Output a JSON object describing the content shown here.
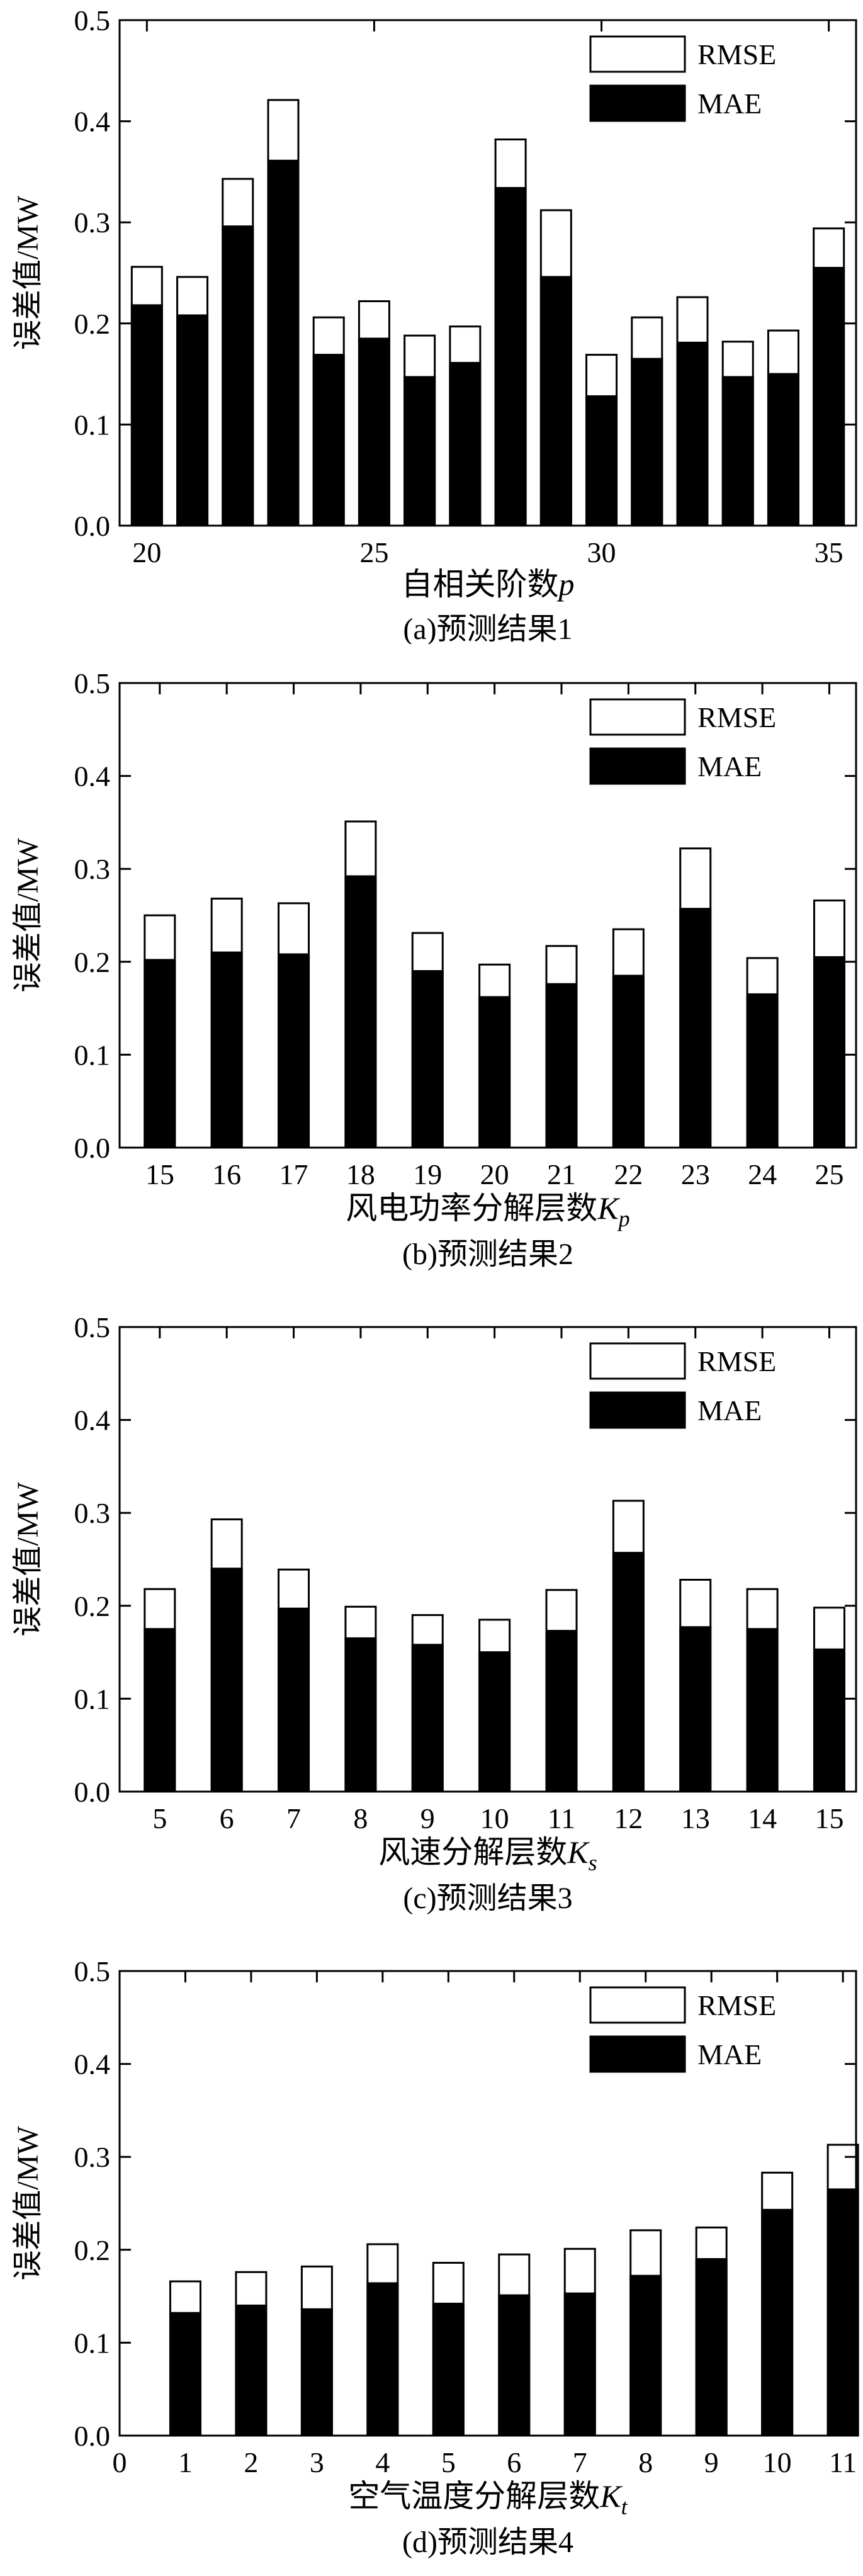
{
  "chart_data": [
    {
      "type": "bar",
      "caption": "(a)预测结果1",
      "xlabel": "自相关阶数",
      "xlabel_var": "p",
      "xlabel_sub": "",
      "ylabel": "误差值/MW",
      "ylim": [
        0,
        0.5
      ],
      "yticks": [
        "0.0",
        "0.1",
        "0.2",
        "0.3",
        "0.4",
        "0.5"
      ],
      "x": [
        20,
        21,
        22,
        23,
        24,
        25,
        26,
        27,
        28,
        29,
        30,
        31,
        32,
        33,
        34,
        35
      ],
      "xticks": [
        "20",
        "25",
        "30",
        "35"
      ],
      "series": [
        {
          "name": "RMSE",
          "values": [
            0.256,
            0.246,
            0.343,
            0.421,
            0.206,
            0.222,
            0.188,
            0.197,
            0.382,
            0.312,
            0.169,
            0.206,
            0.226,
            0.182,
            0.193,
            0.294
          ]
        },
        {
          "name": "MAE",
          "values": [
            0.218,
            0.208,
            0.296,
            0.361,
            0.169,
            0.185,
            0.147,
            0.161,
            0.334,
            0.246,
            0.128,
            0.165,
            0.181,
            0.147,
            0.15,
            0.255
          ]
        }
      ],
      "legend": "top-right"
    },
    {
      "type": "bar",
      "caption": "(b)预测结果2",
      "xlabel": "风电功率分解层数",
      "xlabel_var": "K",
      "xlabel_sub": "p",
      "ylabel": "误差值/MW",
      "ylim": [
        0,
        0.5
      ],
      "yticks": [
        "0.0",
        "0.1",
        "0.2",
        "0.3",
        "0.4",
        "0.5"
      ],
      "x": [
        15,
        16,
        17,
        18,
        19,
        20,
        21,
        22,
        23,
        24,
        25
      ],
      "xticks": [
        "15",
        "16",
        "17",
        "18",
        "19",
        "20",
        "21",
        "22",
        "23",
        "24",
        "25"
      ],
      "series": [
        {
          "name": "RMSE",
          "values": [
            0.25,
            0.268,
            0.263,
            0.351,
            0.231,
            0.197,
            0.217,
            0.235,
            0.322,
            0.204,
            0.266
          ]
        },
        {
          "name": "MAE",
          "values": [
            0.202,
            0.21,
            0.208,
            0.292,
            0.19,
            0.162,
            0.176,
            0.185,
            0.257,
            0.165,
            0.205
          ]
        }
      ],
      "legend": "top-right"
    },
    {
      "type": "bar",
      "caption": "(c)预测结果3",
      "xlabel": "风速分解层数",
      "xlabel_var": "K",
      "xlabel_sub": "s",
      "ylabel": "误差值/MW",
      "ylim": [
        0,
        0.5
      ],
      "yticks": [
        "0.0",
        "0.1",
        "0.2",
        "0.3",
        "0.4",
        "0.5"
      ],
      "x": [
        5,
        6,
        7,
        8,
        9,
        10,
        11,
        12,
        13,
        14,
        15
      ],
      "xticks": [
        "5",
        "6",
        "7",
        "8",
        "9",
        "10",
        "11",
        "12",
        "13",
        "14",
        "15"
      ],
      "series": [
        {
          "name": "RMSE",
          "values": [
            0.218,
            0.293,
            0.239,
            0.199,
            0.19,
            0.185,
            0.217,
            0.313,
            0.228,
            0.218,
            0.198
          ]
        },
        {
          "name": "MAE",
          "values": [
            0.175,
            0.24,
            0.197,
            0.165,
            0.158,
            0.15,
            0.173,
            0.257,
            0.177,
            0.175,
            0.153
          ]
        }
      ],
      "legend": "top-right"
    },
    {
      "type": "bar",
      "caption": "(d)预测结果4",
      "xlabel": "空气温度分解层数",
      "xlabel_var": "K",
      "xlabel_sub": "t",
      "ylabel": "误差值/MW",
      "ylim": [
        0,
        0.5
      ],
      "yticks": [
        "0.0",
        "0.1",
        "0.2",
        "0.3",
        "0.4",
        "0.5"
      ],
      "x": [
        1,
        2,
        3,
        4,
        5,
        6,
        7,
        8,
        9,
        10,
        11
      ],
      "xticks": [
        "0",
        "1",
        "2",
        "3",
        "4",
        "5",
        "6",
        "7",
        "8",
        "9",
        "10",
        "11"
      ],
      "series": [
        {
          "name": "RMSE",
          "values": [
            0.166,
            0.176,
            0.182,
            0.206,
            0.186,
            0.195,
            0.201,
            0.221,
            0.224,
            0.283,
            0.313
          ]
        },
        {
          "name": "MAE",
          "values": [
            0.132,
            0.14,
            0.136,
            0.164,
            0.142,
            0.151,
            0.153,
            0.172,
            0.19,
            0.243,
            0.265
          ]
        }
      ],
      "legend": "top-right"
    }
  ],
  "colors": {
    "rmse_fill": "#ffffff",
    "mae_fill": "#000000",
    "stroke": "#000000"
  }
}
